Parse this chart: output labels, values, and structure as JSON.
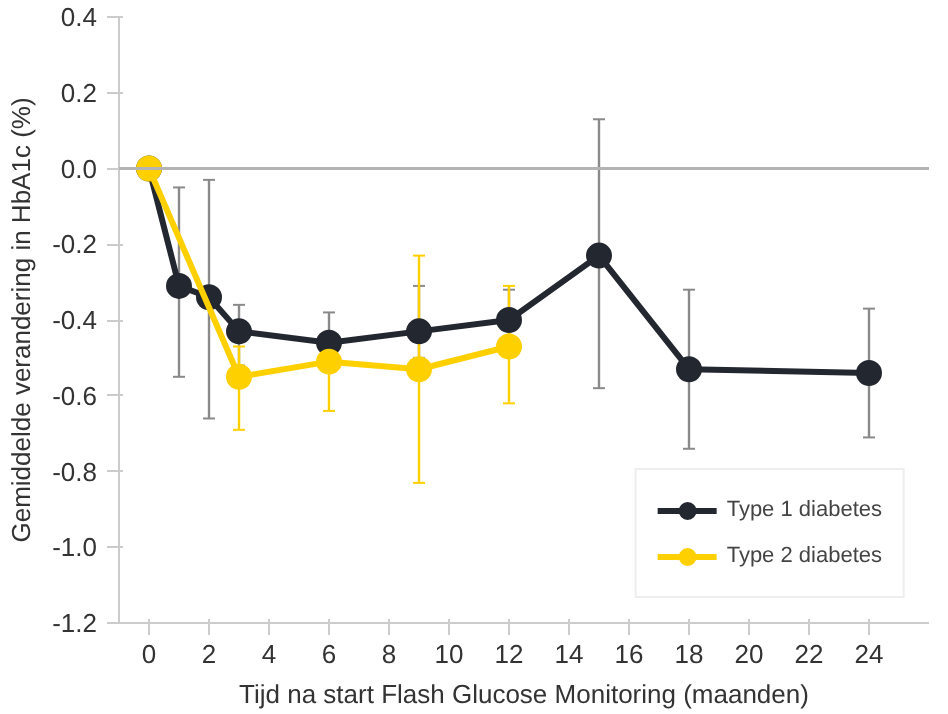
{
  "chart_data": {
    "type": "line",
    "xlabel": "Tijd na start Flash Glucose Monitoring (maanden)",
    "ylabel": "Gemiddelde verandering in HbA1c (%)",
    "xlim": [
      -1,
      26
    ],
    "ylim": [
      -1.2,
      0.4
    ],
    "xticks": [
      0,
      2,
      4,
      6,
      8,
      10,
      12,
      14,
      16,
      18,
      20,
      22,
      24
    ],
    "yticks": [
      {
        "value": 0.4,
        "label": "0.4"
      },
      {
        "value": 0.2,
        "label": "0.2"
      },
      {
        "value": 0,
        "label": "0.0"
      },
      {
        "value": -0.2,
        "label": "-0.2"
      },
      {
        "value": -0.4,
        "label": "-0.4"
      },
      {
        "value": -0.6,
        "label": "-0.6"
      },
      {
        "value": -0.8,
        "label": "-0.8"
      },
      {
        "value": -1.0,
        "label": "-1.0"
      },
      {
        "value": -1.2,
        "label": "-1.2"
      }
    ],
    "grid": false,
    "legend": "bottom right",
    "marker": "circle",
    "line_style": "solid",
    "ref_lines": [
      {
        "axis": "y",
        "value": 0,
        "color": "#b3b3b3"
      }
    ],
    "series": [
      {
        "name": "Type 1 diabetes",
        "color": "#23272f",
        "x": [
          0,
          1,
          2,
          3,
          6,
          9,
          12,
          15,
          18,
          24
        ],
        "values": [
          0,
          -0.31,
          -0.34,
          -0.43,
          -0.46,
          -0.43,
          -0.4,
          -0.23,
          -0.53,
          -0.54
        ],
        "errors": [
          null,
          [
            -0.55,
            -0.05
          ],
          [
            -0.66,
            -0.03
          ],
          [
            -0.52,
            -0.36
          ],
          [
            -0.46,
            -0.38
          ],
          [
            -0.5,
            -0.31
          ],
          [
            -0.45,
            -0.32
          ],
          [
            -0.58,
            0.13
          ],
          [
            -0.74,
            -0.32
          ],
          [
            -0.71,
            -0.37
          ]
        ]
      },
      {
        "name": "Type 2 diabetes",
        "color": "#ffd000",
        "x": [
          0,
          3,
          6,
          9,
          12
        ],
        "values": [
          0,
          -0.55,
          -0.51,
          -0.53,
          -0.47
        ],
        "errors": [
          null,
          [
            -0.69,
            -0.47
          ],
          [
            -0.64,
            -0.47
          ],
          [
            -0.83,
            -0.23
          ],
          [
            -0.62,
            -0.31
          ]
        ]
      }
    ]
  }
}
